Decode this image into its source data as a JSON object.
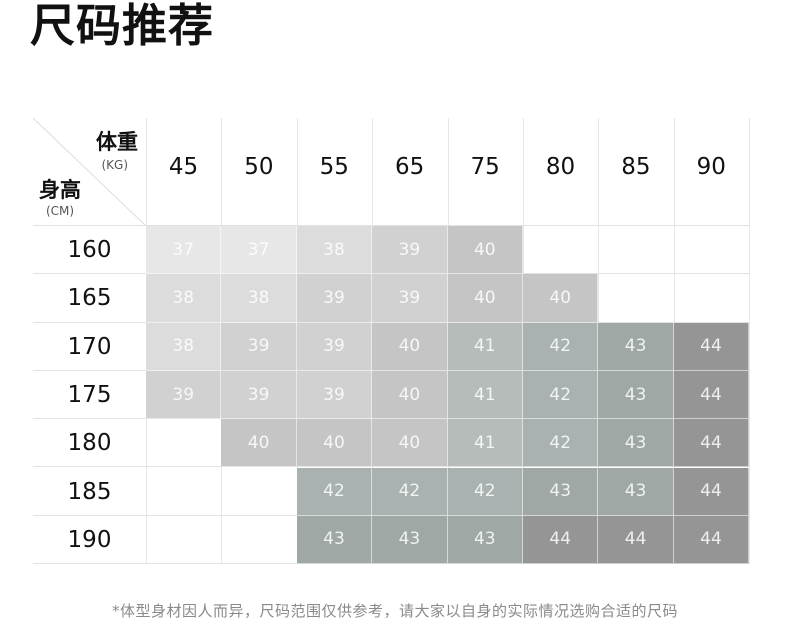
{
  "title": "尺码推荐",
  "corner": {
    "weight_label": "体重",
    "weight_unit": "(KG)",
    "height_label": "身高",
    "height_unit": "(CM)"
  },
  "weights": [
    "45",
    "50",
    "55",
    "65",
    "75",
    "80",
    "85",
    "90"
  ],
  "rows": [
    {
      "height": "160",
      "sizes": [
        "37",
        "37",
        "38",
        "39",
        "40",
        "",
        "",
        ""
      ]
    },
    {
      "height": "165",
      "sizes": [
        "38",
        "38",
        "39",
        "39",
        "40",
        "40",
        "",
        ""
      ]
    },
    {
      "height": "170",
      "sizes": [
        "38",
        "39",
        "39",
        "40",
        "41",
        "42",
        "43",
        "44"
      ]
    },
    {
      "height": "175",
      "sizes": [
        "39",
        "39",
        "39",
        "40",
        "41",
        "42",
        "43",
        "44"
      ]
    },
    {
      "height": "180",
      "sizes": [
        "",
        "40",
        "40",
        "40",
        "41",
        "42",
        "43",
        "44"
      ]
    },
    {
      "height": "185",
      "sizes": [
        "",
        "",
        "42",
        "42",
        "42",
        "43",
        "43",
        "44"
      ]
    },
    {
      "height": "190",
      "sizes": [
        "",
        "",
        "43",
        "43",
        "43",
        "44",
        "44",
        "44"
      ]
    }
  ],
  "size_colors": {
    "37": "#e7e7e7",
    "38": "#dcdcdc",
    "39": "#d1d1d1",
    "40": "#c5c5c5",
    "41": "#b6bcba",
    "42": "#a9b2b0",
    "43": "#9fa8a5",
    "44": "#959595"
  },
  "footnote": "*体型身材因人而异，尺码范围仅供参考，请大家以自身的实际情况选购合适的尺码"
}
